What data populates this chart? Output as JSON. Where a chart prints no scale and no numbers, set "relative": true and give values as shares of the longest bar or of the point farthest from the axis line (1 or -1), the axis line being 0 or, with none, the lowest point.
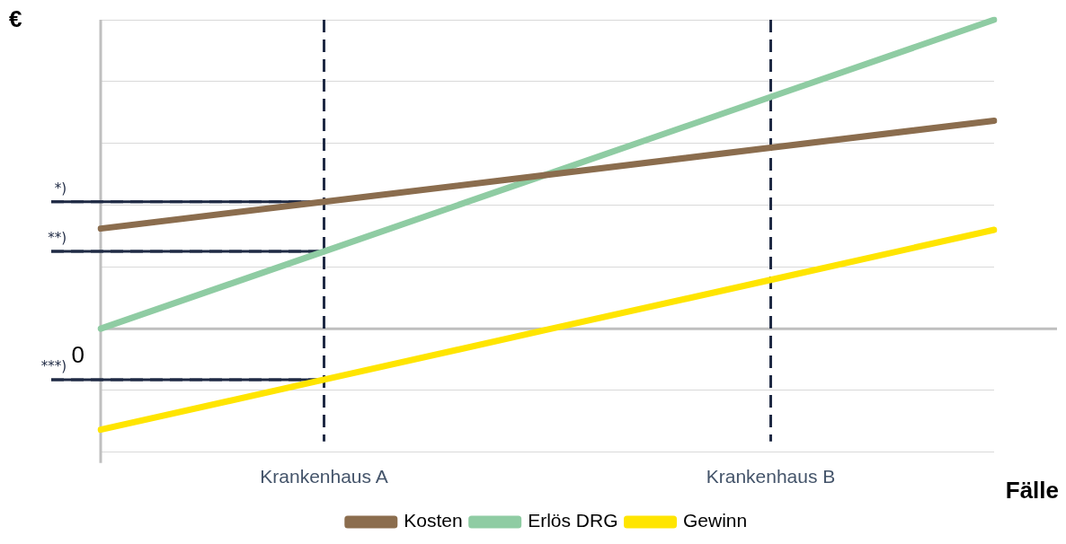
{
  "chart_data": {
    "type": "line",
    "relative": true,
    "ylabel": "€",
    "xlabel": "Fälle",
    "categories": [
      null,
      "Krankenhaus A",
      null,
      "Krankenhaus B",
      null
    ],
    "series": [
      {
        "name": "Kosten",
        "color": "#8b6d4e",
        "values": [
          0.324,
          0.411,
          0.498,
          0.586,
          0.673
        ]
      },
      {
        "name": "Erlös DRG",
        "color": "#8fcca3",
        "values": [
          0,
          0.25,
          0.5,
          0.75,
          1
        ]
      },
      {
        "name": "Gewinn",
        "color": "#ffe500",
        "values": [
          -0.327,
          -0.165,
          -0.003,
          0.158,
          0.32
        ]
      }
    ],
    "ref_lines": [
      {
        "axis": "x",
        "value": "Krankenhaus A",
        "color": "#1f2a44",
        "line_style": "dashed"
      },
      {
        "axis": "x",
        "value": "Krankenhaus B",
        "color": "#1f2a44",
        "line_style": "dashed"
      },
      {
        "axis": "y",
        "value": 0.411,
        "label": "*)",
        "color": "#1f2a44",
        "line_style": "dashed"
      },
      {
        "axis": "y",
        "value": 0.25,
        "label": "**)",
        "color": "#1f2a44",
        "line_style": "dashed"
      },
      {
        "axis": "y",
        "value": -0.165,
        "label": "***)",
        "color": "#1f2a44",
        "line_style": "dashed"
      }
    ],
    "annotations": [
      "0"
    ],
    "grid": "y",
    "legend": "bottom",
    "tick_labels": "x",
    "marker": "none",
    "line_style": "solid"
  }
}
